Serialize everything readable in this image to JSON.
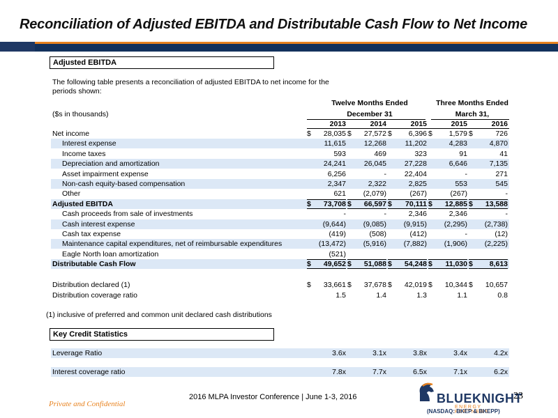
{
  "title": "Reconciliation of Adjusted EBITDA and Distributable Cash Flow to Net Income",
  "section1_label": "Adjusted EBITDA",
  "intro_text": "The following table presents a reconciliation of adjusted EBITDA to net income for the periods shown:",
  "header": {
    "group1": "Twelve Months Ended",
    "group1_sub": "December 31",
    "group2": "Three Months Ended",
    "group2_sub": "March 31,",
    "units": "($s in thousands)",
    "years": [
      "2013",
      "2014",
      "2015",
      "2015",
      "2016"
    ]
  },
  "rows": [
    {
      "label": "Net income",
      "indent": false,
      "bold": false,
      "shade": false,
      "dollar": true,
      "values": [
        "28,035",
        "27,572",
        "6,396",
        "1,579",
        "726"
      ]
    },
    {
      "label": "Interest expense",
      "indent": true,
      "bold": false,
      "shade": true,
      "dollar": false,
      "values": [
        "11,615",
        "12,268",
        "11,202",
        "4,283",
        "4,870"
      ]
    },
    {
      "label": "Income taxes",
      "indent": true,
      "bold": false,
      "shade": false,
      "dollar": false,
      "values": [
        "593",
        "469",
        "323",
        "91",
        "41"
      ]
    },
    {
      "label": "Depreciation and amortization",
      "indent": true,
      "bold": false,
      "shade": true,
      "dollar": false,
      "values": [
        "24,241",
        "26,045",
        "27,228",
        "6,646",
        "7,135"
      ]
    },
    {
      "label": "Asset impairment expense",
      "indent": true,
      "bold": false,
      "shade": false,
      "dollar": false,
      "values": [
        "6,256",
        "-",
        "22,404",
        "-",
        "271"
      ]
    },
    {
      "label": "Non-cash equity-based compensation",
      "indent": true,
      "bold": false,
      "shade": true,
      "dollar": false,
      "values": [
        "2,347",
        "2,322",
        "2,825",
        "553",
        "545"
      ]
    },
    {
      "label": "Other",
      "indent": true,
      "bold": false,
      "shade": false,
      "dollar": false,
      "values": [
        "621",
        "(2,079)",
        "(267)",
        "(267)",
        "-"
      ]
    },
    {
      "label": "Adjusted EBITDA",
      "indent": false,
      "bold": true,
      "shade": true,
      "dollar": true,
      "values": [
        "73,708",
        "66,597",
        "70,111",
        "12,885",
        "13,588"
      ]
    },
    {
      "label": "Cash proceeds from sale of investments",
      "indent": true,
      "bold": false,
      "shade": false,
      "dollar": false,
      "values": [
        "-",
        "-",
        "2,346",
        "2,346",
        "-"
      ]
    },
    {
      "label": "Cash interest expense",
      "indent": true,
      "bold": false,
      "shade": true,
      "dollar": false,
      "values": [
        "(9,644)",
        "(9,085)",
        "(9,915)",
        "(2,295)",
        "(2,738)"
      ]
    },
    {
      "label": "Cash tax expense",
      "indent": true,
      "bold": false,
      "shade": false,
      "dollar": false,
      "values": [
        "(419)",
        "(508)",
        "(412)",
        "-",
        "(12)"
      ]
    },
    {
      "label": "Maintenance capital expenditures, net of reimbursable expenditures",
      "indent": true,
      "bold": false,
      "shade": true,
      "dollar": false,
      "values": [
        "(13,472)",
        "(5,916)",
        "(7,882)",
        "(1,906)",
        "(2,225)"
      ]
    },
    {
      "label": "Eagle North loan amortization",
      "indent": true,
      "bold": false,
      "shade": false,
      "dollar": false,
      "values": [
        "(521)",
        "",
        "",
        "",
        ""
      ]
    },
    {
      "label": "Distributable Cash Flow",
      "indent": false,
      "bold": true,
      "shade": true,
      "dollar": true,
      "values": [
        "49,652",
        "51,088",
        "54,248",
        "11,030",
        "8,613"
      ]
    }
  ],
  "distribution_rows": [
    {
      "label": "Distribution declared (1)",
      "dollar": true,
      "values": [
        "33,661",
        "37,678",
        "42,019",
        "10,344",
        "10,657"
      ]
    },
    {
      "label": "Distribution coverage ratio",
      "dollar": false,
      "values": [
        "1.5",
        "1.4",
        "1.3",
        "1.1",
        "0.8"
      ]
    }
  ],
  "footnote": "(1) inclusive of preferred and common unit declared cash distributions",
  "section2_label": "Key Credit Statistics",
  "credit_rows": [
    {
      "label": "Leverage Ratio",
      "values": [
        "3.6x",
        "3.1x",
        "3.8x",
        "3.4x",
        "4.2x"
      ]
    },
    {
      "label": "Interest coverage ratio",
      "values": [
        "7.8x",
        "7.7x",
        "6.5x",
        "7.1x",
        "6.2x"
      ]
    }
  ],
  "footer": {
    "confidential": "Private and Confidential",
    "conference": "2016 MLPA Investor Conference | June 1-3, 2016",
    "logo_name": "BLUEKNIGHT",
    "logo_sub": "ENERGY PARTNERS",
    "nasdaq": "(NASDAQ: BKEP & BKEPP)",
    "page": "23"
  },
  "colors": {
    "accent_orange": "#e8821e",
    "brand_navy": "#1f3864",
    "row_shade": "#dce8f6"
  }
}
